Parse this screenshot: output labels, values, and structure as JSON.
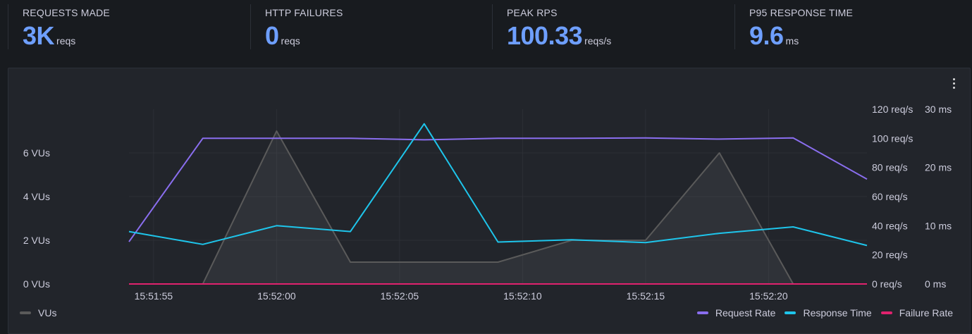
{
  "stats": [
    {
      "label": "REQUESTS MADE",
      "value": "3K",
      "unit": "reqs"
    },
    {
      "label": "HTTP FAILURES",
      "value": "0",
      "unit": "reqs"
    },
    {
      "label": "PEAK RPS",
      "value": "100.33",
      "unit": "reqs/s"
    },
    {
      "label": "P95 RESPONSE TIME",
      "value": "9.6",
      "unit": "ms"
    }
  ],
  "panel": {
    "menu_icon": "more-vertical-icon"
  },
  "chart_data": {
    "type": "line",
    "x_ticks": [
      "15:51:55",
      "15:52:00",
      "15:52:05",
      "15:52:10",
      "15:52:15",
      "15:52:20"
    ],
    "axes": {
      "vus": {
        "ticks": [
          "0 VUs",
          "2 VUs",
          "4 VUs",
          "6 VUs"
        ],
        "range": [
          0,
          8
        ]
      },
      "req_rate": {
        "ticks": [
          "0 req/s",
          "20 req/s",
          "40 req/s",
          "60 req/s",
          "80 req/s",
          "100 req/s",
          "120 req/s"
        ],
        "range": [
          0,
          120
        ]
      },
      "response_time": {
        "ticks": [
          "0 ms",
          "10 ms",
          "20 ms",
          "30 ms"
        ],
        "range": [
          0,
          30
        ]
      }
    },
    "grid": true,
    "series": [
      {
        "name": "VUs",
        "color": "#5a5a5a",
        "axis": "vus",
        "style": "area",
        "x": [
          "15:51:54",
          "15:51:57",
          "15:52:00",
          "15:52:03",
          "15:52:06",
          "15:52:09",
          "15:52:12",
          "15:52:15",
          "15:52:18",
          "15:52:21"
        ],
        "values": [
          0,
          0,
          7,
          1,
          1,
          1,
          2,
          2,
          6,
          0
        ]
      },
      {
        "name": "Request Rate",
        "color": "#8a6eef",
        "axis": "req_rate",
        "style": "line",
        "x": [
          "15:51:54",
          "15:51:57",
          "15:52:00",
          "15:52:03",
          "15:52:06",
          "15:52:09",
          "15:52:12",
          "15:52:15",
          "15:52:18",
          "15:52:21",
          "15:52:24"
        ],
        "values": [
          29,
          100,
          100,
          100,
          99,
          100,
          100,
          100.33,
          99.5,
          100.3,
          72
        ]
      },
      {
        "name": "Response Time",
        "color": "#1ec5eb",
        "axis": "response_time",
        "style": "line",
        "x": [
          "15:51:54",
          "15:51:57",
          "15:52:00",
          "15:52:03",
          "15:52:06",
          "15:52:09",
          "15:52:12",
          "15:52:15",
          "15:52:18",
          "15:52:21",
          "15:52:24"
        ],
        "values": [
          9,
          6.8,
          10,
          9,
          27.5,
          7.2,
          7.6,
          7.1,
          8.7,
          9.8,
          6.6
        ]
      },
      {
        "name": "Failure Rate",
        "color": "#e0226e",
        "axis": "req_rate",
        "style": "line",
        "x": [
          "15:51:54",
          "15:52:24"
        ],
        "values": [
          0,
          0
        ]
      }
    ],
    "legend_left": [
      "VUs"
    ],
    "legend_right": [
      "Request Rate",
      "Response Time",
      "Failure Rate"
    ]
  }
}
